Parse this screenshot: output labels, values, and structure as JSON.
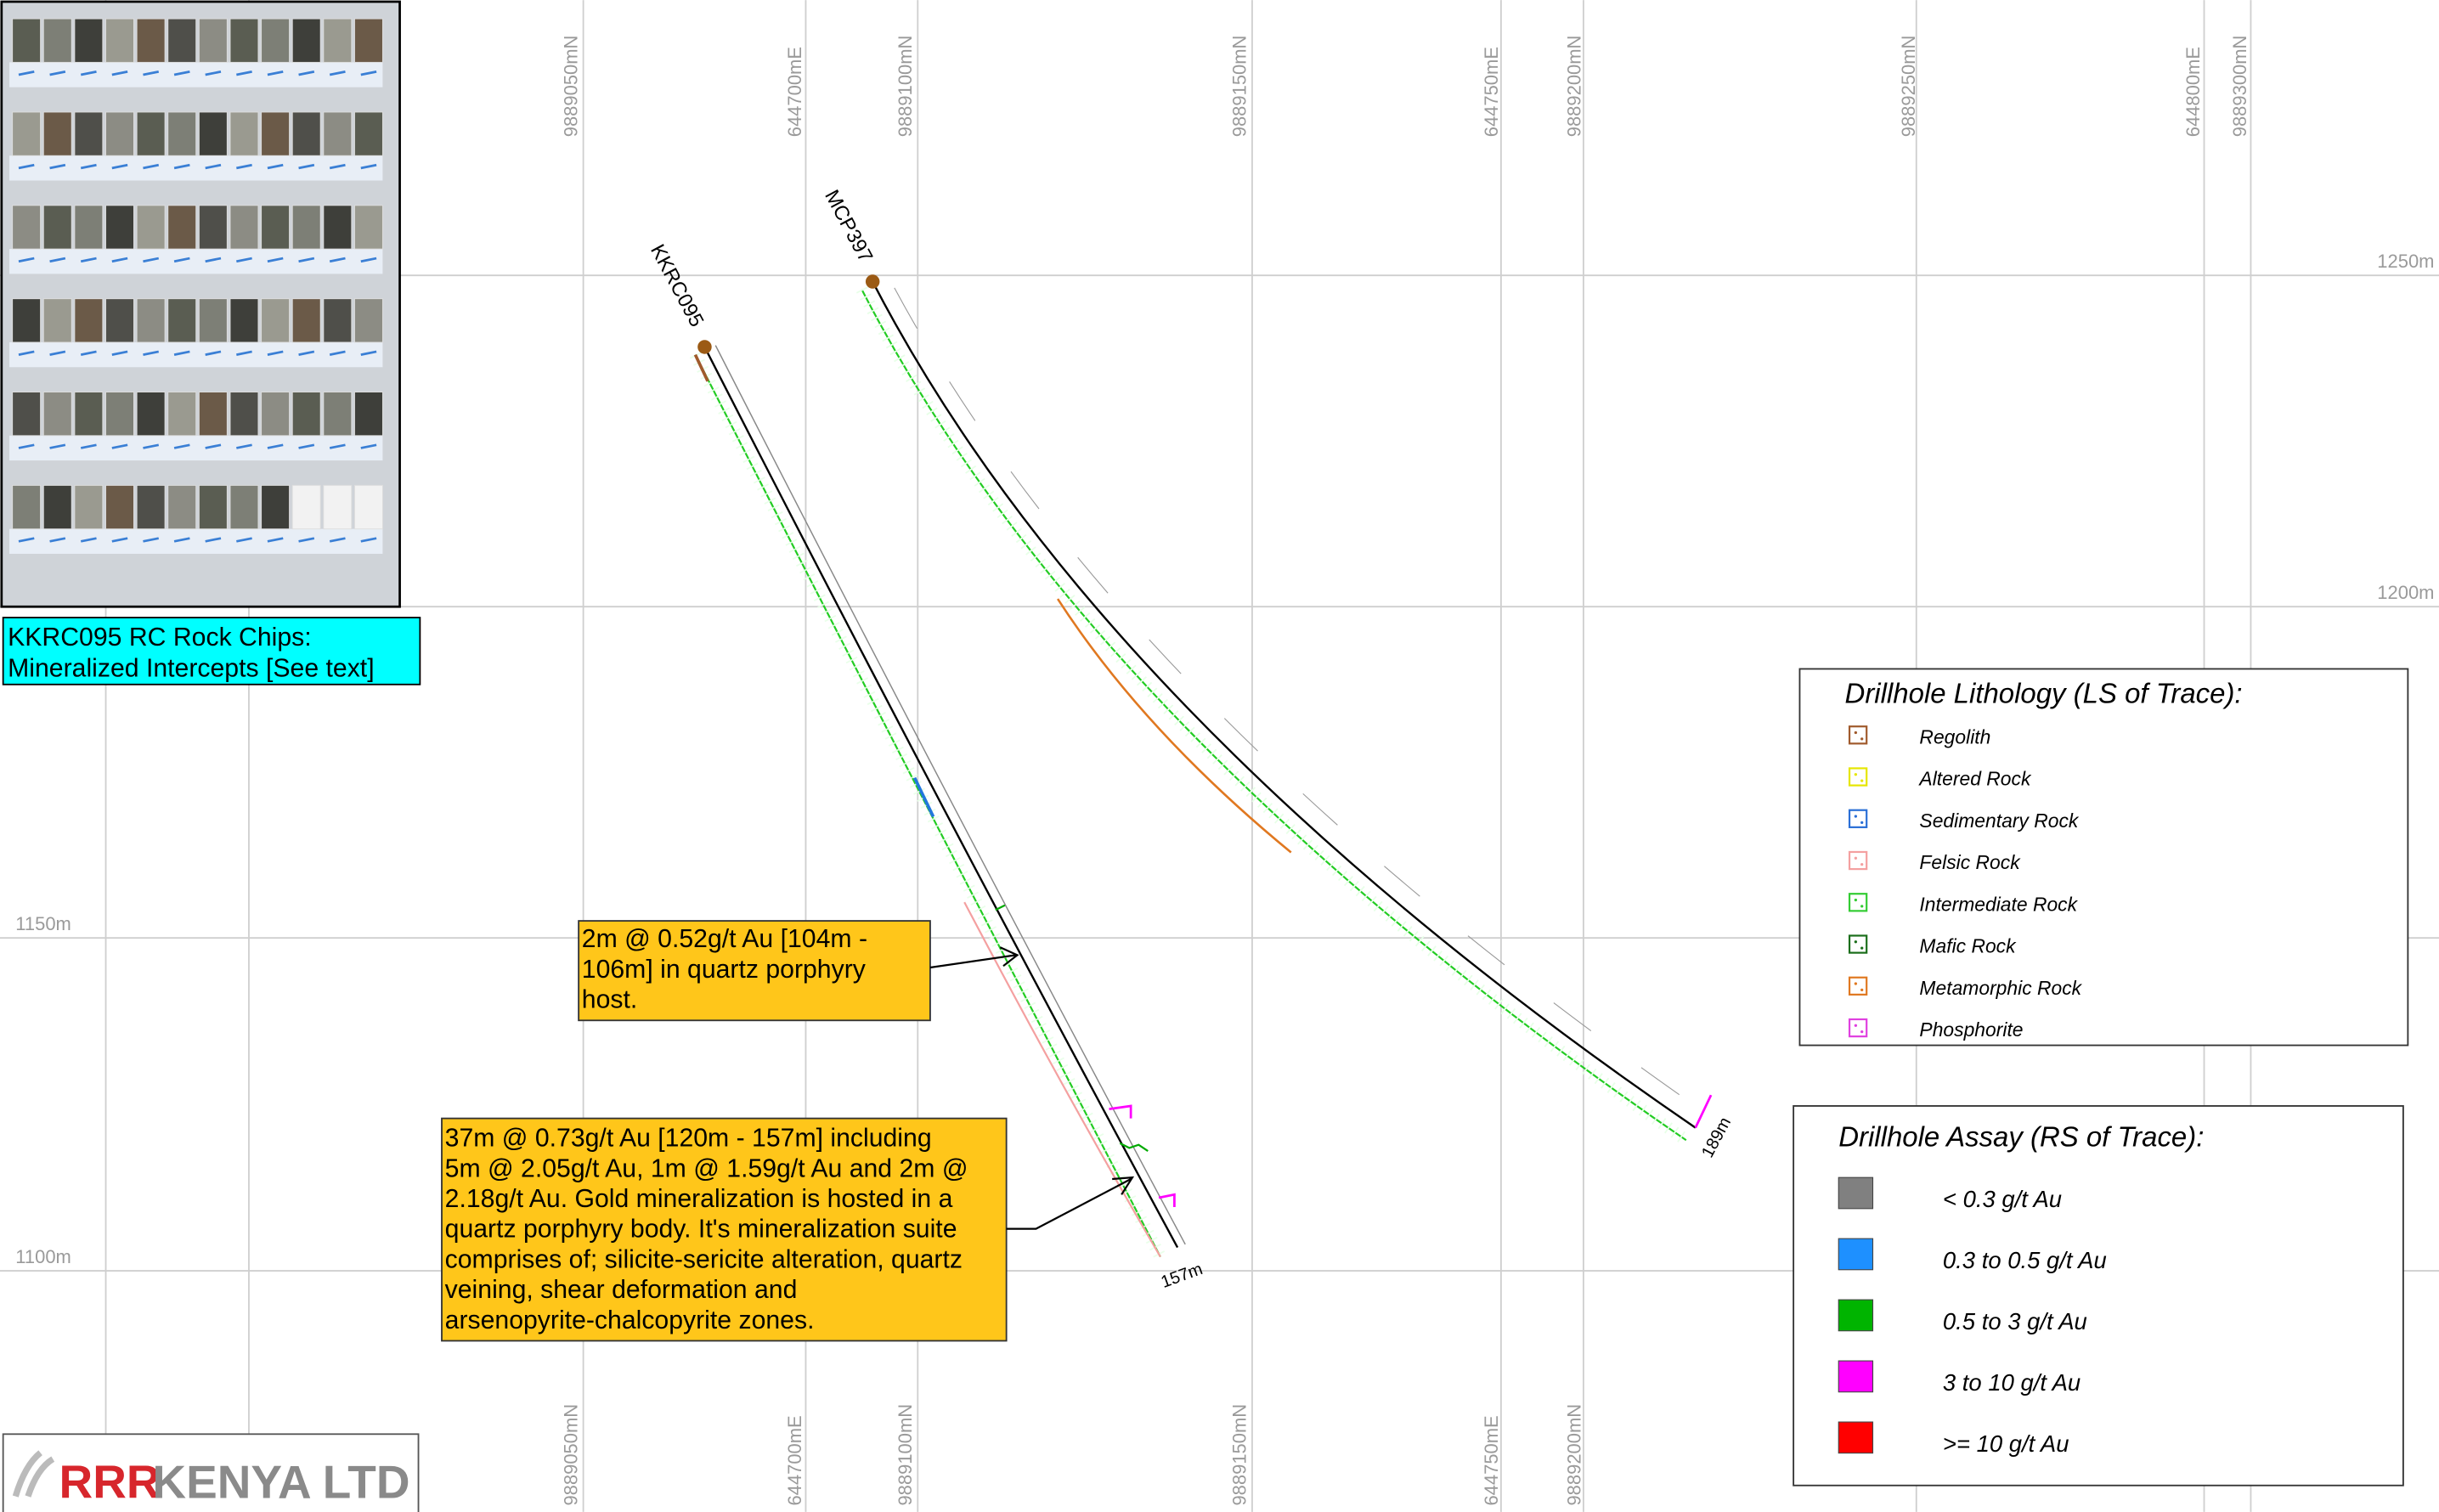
{
  "photo_caption": [
    "KKRC095 RC Rock Chips:",
    "Mineralized Intercepts [See text]"
  ],
  "grid": {
    "top_labels": [
      "9889050mN",
      "644700mE",
      "9889100mN",
      "9889150mN",
      "644750mE",
      "9889200mN",
      "9889250mN",
      "644800mE",
      "9889300mN"
    ],
    "bottom_labels": [
      "9889050mN",
      "644700mE",
      "9889100mN",
      "9889150mN",
      "644750mE",
      "9889200mN"
    ],
    "elevation_labels": [
      "1250m",
      "1200m",
      "1150m",
      "1100m"
    ]
  },
  "drillholes": [
    {
      "name": "KKRC095",
      "depth": "157m"
    },
    {
      "name": "MCP397",
      "depth": "189m"
    }
  ],
  "annotations": [
    {
      "lines": [
        "2m @ 0.52g/t Au [104m -",
        "106m] in quartz porphyry",
        "host."
      ]
    },
    {
      "lines": [
        "37m @ 0.73g/t Au [120m - 157m] including",
        "5m @ 2.05g/t Au, 1m @ 1.59g/t Au and 2m @",
        "2.18g/t Au. Gold mineralization is hosted in a",
        "quartz porphyry body. It's mineralization suite",
        "comprises of; silicite-sericite alteration, quartz",
        "veining, shear deformation and",
        "arsenopyrite-chalcopyrite zones."
      ]
    }
  ],
  "lithology_legend": {
    "title": "Drillhole Lithology (LS of Trace):",
    "items": [
      "Regolith",
      "Altered Rock",
      "Sedimentary Rock",
      "Felsic Rock",
      "Intermediate Rock",
      "Mafic Rock",
      "Metamorphic Rock",
      "Phosphorite"
    ]
  },
  "assay_legend": {
    "title": "Drillhole Assay (RS of Trace):",
    "items": [
      "< 0.3 g/t Au",
      "0.3 to 0.5 g/t Au",
      "0.5 to 3 g/t Au",
      "3 to 10 g/t Au",
      ">= 10 g/t Au"
    ]
  },
  "logo": {
    "mark": "RRR",
    "text": "KENYA LTD"
  }
}
